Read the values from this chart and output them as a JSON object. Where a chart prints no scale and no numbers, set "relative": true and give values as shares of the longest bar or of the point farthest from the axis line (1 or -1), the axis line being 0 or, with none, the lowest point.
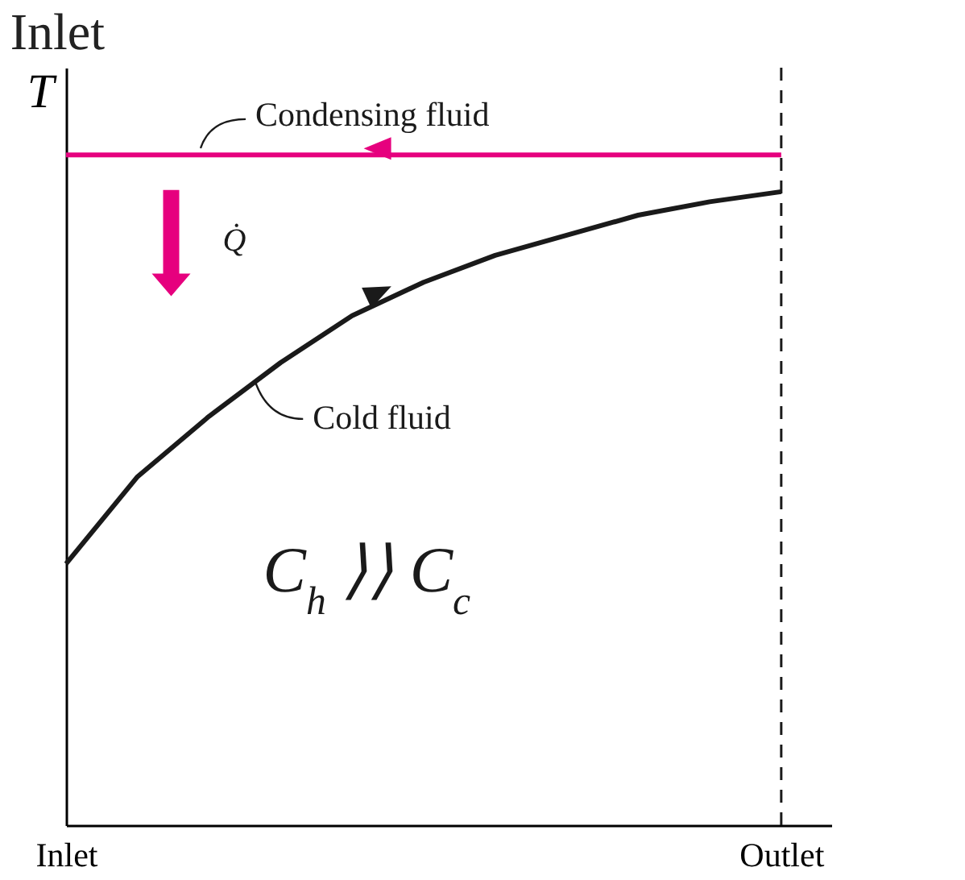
{
  "chart_data": {
    "type": "line",
    "title": "Inlet",
    "ylabel": "T",
    "relative": true,
    "categories": [
      "Inlet",
      null,
      null,
      null,
      null,
      null,
      null,
      null,
      null,
      null,
      "Outlet"
    ],
    "series": [
      {
        "color": "#e6007e",
        "values": [
          1,
          1,
          1,
          1,
          1,
          1,
          1,
          1,
          1,
          1,
          1
        ]
      },
      {
        "color": "#1a1a1a",
        "values": [
          0.39,
          0.52,
          0.61,
          0.69,
          0.76,
          0.81,
          0.85,
          0.88,
          0.91,
          0.93,
          0.945
        ]
      }
    ],
    "ref_lines": [
      {
        "axis": "x",
        "value": "Outlet",
        "line_style": "dashed",
        "color": "#1a1a1a"
      }
    ],
    "annotations": [
      "Condensing fluid",
      "Cold fluid",
      "Q̇",
      "C$_{h}$ ⟩⟩ C$_{c}$"
    ],
    "grid": false,
    "legend": false,
    "marker": "none",
    "line_style": "solid"
  }
}
